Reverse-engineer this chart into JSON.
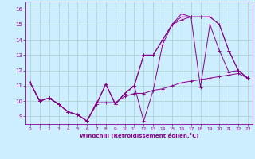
{
  "title": "",
  "xlabel": "Windchill (Refroidissement éolien,°C)",
  "ylabel": "",
  "xlim": [
    -0.5,
    23.5
  ],
  "ylim": [
    8.5,
    16.5
  ],
  "yticks": [
    9,
    10,
    11,
    12,
    13,
    14,
    15,
    16
  ],
  "xticks": [
    0,
    1,
    2,
    3,
    4,
    5,
    6,
    7,
    8,
    9,
    10,
    11,
    12,
    13,
    14,
    15,
    16,
    17,
    18,
    19,
    20,
    21,
    22,
    23
  ],
  "background_color": "#cceeff",
  "grid_color": "#aacccc",
  "line_color": "#880088",
  "series": [
    {
      "x": [
        0,
        1,
        2,
        3,
        4,
        5,
        6,
        7,
        8,
        9,
        10,
        11,
        12,
        13,
        14,
        15,
        16,
        17,
        18,
        19,
        20,
        21,
        22,
        23
      ],
      "y": [
        11.2,
        10.0,
        10.2,
        9.8,
        9.3,
        9.1,
        8.7,
        9.8,
        11.1,
        9.8,
        10.5,
        11.0,
        8.7,
        10.7,
        13.7,
        15.0,
        15.7,
        15.5,
        10.9,
        15.0,
        13.3,
        11.9,
        12.0,
        11.5
      ]
    },
    {
      "x": [
        0,
        1,
        2,
        3,
        4,
        5,
        6,
        7,
        8,
        9,
        10,
        11,
        12,
        13,
        14,
        15,
        16,
        17,
        18,
        19,
        20,
        21,
        22,
        23
      ],
      "y": [
        11.2,
        10.0,
        10.2,
        9.8,
        9.3,
        9.1,
        8.7,
        9.8,
        11.1,
        9.8,
        10.5,
        11.0,
        13.0,
        13.0,
        14.0,
        15.0,
        15.3,
        15.5,
        15.5,
        15.5,
        15.0,
        13.3,
        12.0,
        11.5
      ]
    },
    {
      "x": [
        0,
        1,
        2,
        3,
        4,
        5,
        6,
        7,
        8,
        9,
        10,
        11,
        12,
        13,
        14,
        15,
        16,
        17,
        18,
        19,
        20,
        21,
        22,
        23
      ],
      "y": [
        11.2,
        10.0,
        10.2,
        9.8,
        9.3,
        9.1,
        8.7,
        9.8,
        11.1,
        9.8,
        10.5,
        11.0,
        13.0,
        13.0,
        14.0,
        15.0,
        15.5,
        15.5,
        15.5,
        15.5,
        15.0,
        13.3,
        12.0,
        11.5
      ]
    },
    {
      "x": [
        0,
        1,
        2,
        3,
        4,
        5,
        6,
        7,
        8,
        9,
        10,
        11,
        12,
        13,
        14,
        15,
        16,
        17,
        18,
        19,
        20,
        21,
        22,
        23
      ],
      "y": [
        11.2,
        10.0,
        10.2,
        9.8,
        9.3,
        9.1,
        8.7,
        9.9,
        9.9,
        9.9,
        10.3,
        10.5,
        10.5,
        10.7,
        10.8,
        11.0,
        11.2,
        11.3,
        11.4,
        11.5,
        11.6,
        11.7,
        11.8,
        11.5
      ]
    }
  ]
}
